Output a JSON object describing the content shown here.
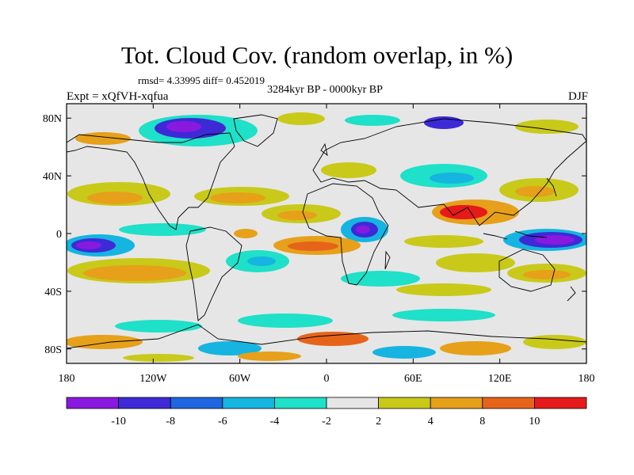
{
  "title": "Tot. Cloud Cov. (random overlap, in %)",
  "stats": "rmsd= 4.33995 diff= 0.452019",
  "period": "3284kyr BP - 0000kyr BP",
  "experiment": "Expt = xQfVH-xqfua",
  "season": "DJF",
  "map": {
    "lon_ticks": [
      "180",
      "120W",
      "60W",
      "0",
      "60E",
      "120E",
      "180"
    ],
    "lat_ticks": [
      "80N",
      "40N",
      "0",
      "40S",
      "80S"
    ],
    "background_color": "#e6e6e6",
    "coastline_color": "#000000"
  },
  "colorbar": {
    "labels": [
      "-10",
      "-8",
      "-6",
      "-4",
      "-2",
      "2",
      "4",
      "8",
      "10"
    ],
    "colors": [
      "#8a19e0",
      "#3d2ad6",
      "#1f66e0",
      "#16b4e0",
      "#1fe0c8",
      "#e6e6e6",
      "#c9c91a",
      "#e6a01a",
      "#e6641a",
      "#e61a1a"
    ]
  }
}
